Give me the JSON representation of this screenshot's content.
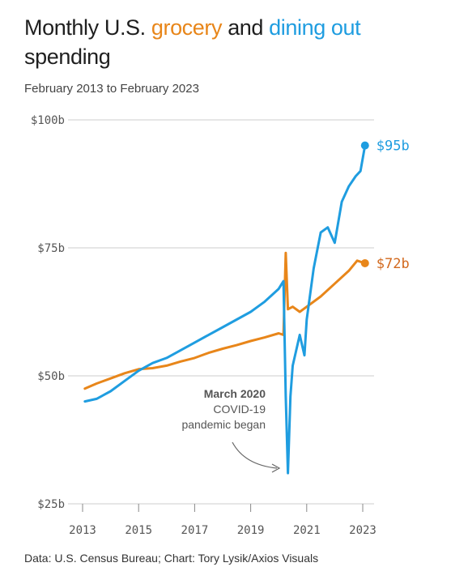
{
  "header": {
    "title_part1": "Monthly U.S. ",
    "title_grocery": "grocery",
    "title_part2": " and ",
    "title_dining": "dining out",
    "title_part3": " spending",
    "subtitle": "February 2013 to February 2023"
  },
  "source": "Data: U.S. Census Bureau; Chart: Tory Lysik/Axios Visuals",
  "colors": {
    "grocery": "#e8861a",
    "dining": "#1f9de0",
    "grocery_label": "#d2691e",
    "grid": "#cccccc"
  },
  "annotation": {
    "line1": "March 2020",
    "line2": "COVID-19",
    "line3": "pandemic began"
  },
  "chart_data": {
    "type": "line",
    "title": "Monthly U.S. grocery and dining out spending",
    "subtitle": "February 2013 to February 2023",
    "ylim": [
      25,
      100
    ],
    "xlim": [
      2013,
      2023
    ],
    "y_ticks": [
      "$25b",
      "$50b",
      "$75b",
      "$100b"
    ],
    "y_tick_values": [
      25,
      50,
      75,
      100
    ],
    "x_ticks": [
      "2013",
      "2015",
      "2017",
      "2019",
      "2021",
      "2023"
    ],
    "x_tick_values": [
      2013,
      2015,
      2017,
      2019,
      2021,
      2023
    ],
    "grid": true,
    "series": [
      {
        "name": "grocery",
        "end_label": "$72b",
        "x": [
          2013.08,
          2013.5,
          2014.0,
          2014.5,
          2015.0,
          2015.5,
          2016.0,
          2016.5,
          2017.0,
          2017.5,
          2018.0,
          2018.5,
          2019.0,
          2019.5,
          2020.0,
          2020.17,
          2020.25,
          2020.33,
          2020.5,
          2020.75,
          2021.0,
          2021.5,
          2022.0,
          2022.5,
          2022.8,
          2023.08
        ],
        "values": [
          47.5,
          48.5,
          49.5,
          50.5,
          51.3,
          51.5,
          52.0,
          52.8,
          53.5,
          54.5,
          55.3,
          56.0,
          56.8,
          57.5,
          58.3,
          58.0,
          74.0,
          63.0,
          63.5,
          62.5,
          63.5,
          65.5,
          68.0,
          70.5,
          72.5,
          72.0
        ]
      },
      {
        "name": "dining out",
        "end_label": "$95b",
        "x": [
          2013.08,
          2013.5,
          2014.0,
          2014.5,
          2015.0,
          2015.5,
          2016.0,
          2016.5,
          2017.0,
          2017.5,
          2018.0,
          2018.5,
          2019.0,
          2019.5,
          2020.0,
          2020.17,
          2020.25,
          2020.33,
          2020.42,
          2020.5,
          2020.75,
          2020.92,
          2021.0,
          2021.25,
          2021.5,
          2021.75,
          2022.0,
          2022.25,
          2022.5,
          2022.75,
          2022.92,
          2023.08
        ],
        "values": [
          45.0,
          45.5,
          47.0,
          49.0,
          51.0,
          52.5,
          53.5,
          55.0,
          56.5,
          58.0,
          59.5,
          61.0,
          62.5,
          64.5,
          67.0,
          68.5,
          46.0,
          31.0,
          46.0,
          52.0,
          58.0,
          54.0,
          61.0,
          71.0,
          78.0,
          79.0,
          76.0,
          84.0,
          87.0,
          89.0,
          90.0,
          95.0
        ]
      }
    ]
  }
}
